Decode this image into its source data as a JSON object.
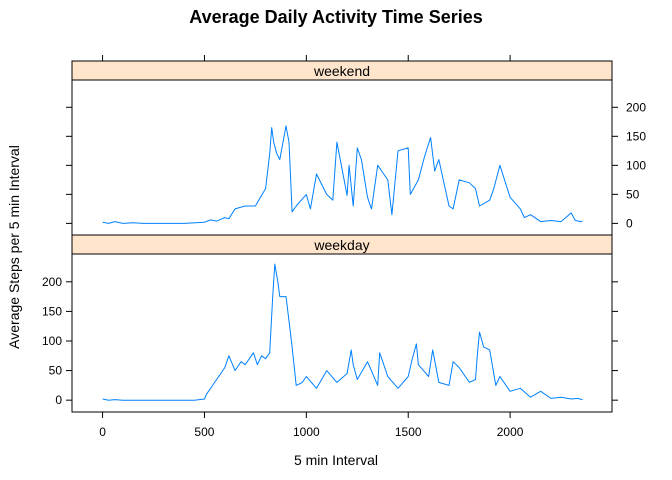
{
  "chart_data": {
    "type": "line",
    "title": "Average Daily Activity Time Series",
    "xlabel": "5 min Interval",
    "ylabel": "Average Steps per 5 min Interval",
    "xlim": [
      -150,
      2500
    ],
    "ylim": [
      -20,
      247
    ],
    "x_ticks": [
      0,
      500,
      1000,
      1500,
      2000
    ],
    "y_ticks": [
      0,
      50,
      100,
      150,
      200
    ],
    "line_color": "#0080ff",
    "strip_color": "#ffe5cc",
    "grid": false,
    "legend": "none",
    "panels": [
      {
        "name": "weekend",
        "y_axis_side": "right",
        "x": [
          0,
          30,
          60,
          100,
          150,
          200,
          300,
          400,
          500,
          530,
          560,
          600,
          620,
          650,
          700,
          750,
          780,
          800,
          820,
          830,
          840,
          855,
          870,
          900,
          915,
          930,
          950,
          1000,
          1020,
          1050,
          1100,
          1130,
          1150,
          1200,
          1210,
          1230,
          1250,
          1270,
          1300,
          1320,
          1350,
          1400,
          1420,
          1450,
          1500,
          1510,
          1550,
          1580,
          1610,
          1630,
          1650,
          1700,
          1720,
          1750,
          1800,
          1830,
          1850,
          1900,
          1920,
          1950,
          2000,
          2050,
          2070,
          2100,
          2150,
          2200,
          2250,
          2300,
          2320,
          2350,
          2355
        ],
        "y": [
          2,
          0,
          3,
          0,
          1,
          0,
          0,
          0,
          2,
          6,
          4,
          10,
          8,
          25,
          30,
          30,
          48,
          60,
          120,
          165,
          140,
          120,
          110,
          168,
          140,
          20,
          30,
          50,
          25,
          85,
          50,
          40,
          140,
          48,
          100,
          30,
          130,
          110,
          45,
          25,
          100,
          75,
          15,
          125,
          130,
          50,
          75,
          115,
          148,
          90,
          110,
          30,
          25,
          75,
          70,
          60,
          30,
          40,
          60,
          100,
          45,
          25,
          10,
          15,
          3,
          5,
          3,
          18,
          5,
          3,
          4
        ]
      },
      {
        "name": "weekday",
        "y_axis_side": "left",
        "x": [
          0,
          30,
          60,
          100,
          200,
          300,
          400,
          450,
          500,
          510,
          530,
          550,
          600,
          620,
          650,
          680,
          700,
          740,
          760,
          780,
          800,
          820,
          835,
          845,
          860,
          870,
          900,
          920,
          930,
          950,
          980,
          1000,
          1050,
          1100,
          1150,
          1200,
          1220,
          1230,
          1250,
          1300,
          1350,
          1360,
          1400,
          1450,
          1500,
          1520,
          1540,
          1550,
          1600,
          1620,
          1650,
          1700,
          1720,
          1750,
          1800,
          1830,
          1840,
          1850,
          1870,
          1900,
          1930,
          1950,
          2000,
          2050,
          2100,
          2150,
          2200,
          2250,
          2300,
          2330,
          2355
        ],
        "y": [
          2,
          0,
          1,
          0,
          0,
          0,
          0,
          0,
          2,
          10,
          20,
          30,
          55,
          75,
          50,
          65,
          60,
          80,
          60,
          75,
          70,
          80,
          175,
          230,
          200,
          175,
          175,
          120,
          90,
          25,
          30,
          40,
          20,
          50,
          30,
          45,
          85,
          60,
          35,
          65,
          25,
          80,
          40,
          20,
          40,
          70,
          95,
          60,
          40,
          85,
          30,
          25,
          65,
          55,
          30,
          35,
          80,
          115,
          90,
          85,
          25,
          40,
          15,
          20,
          5,
          15,
          3,
          5,
          2,
          3,
          1
        ]
      }
    ]
  }
}
